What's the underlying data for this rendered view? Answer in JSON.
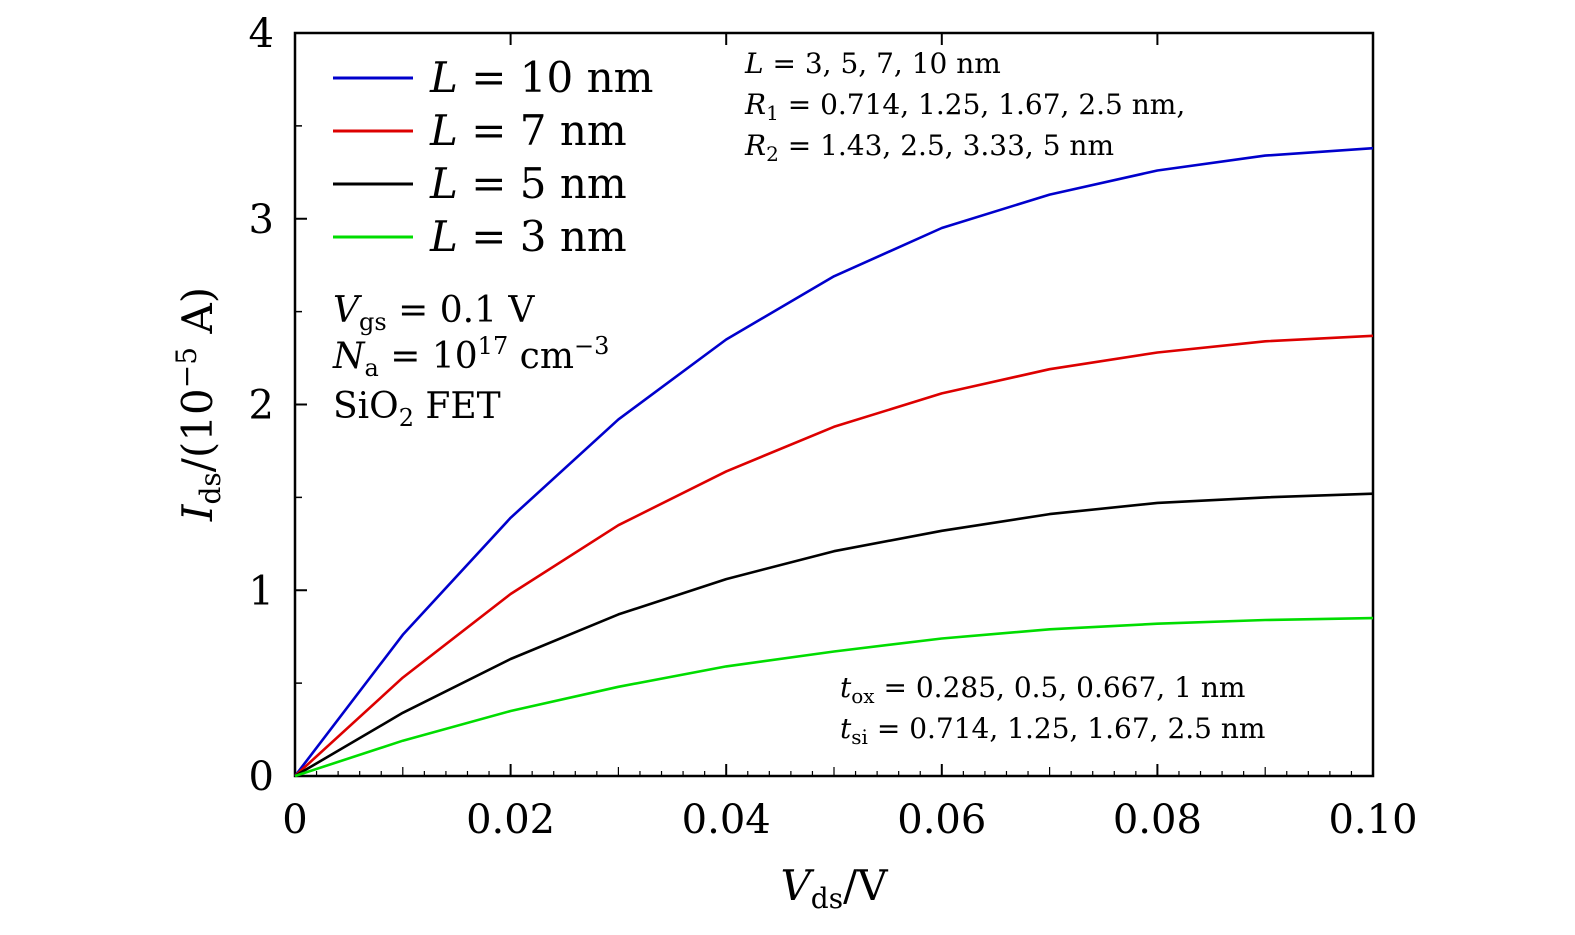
{
  "chart_data": {
    "type": "line",
    "xlabel": "V_ds/V",
    "ylabel": "I_ds/(10^-5 A)",
    "xlim": [
      0,
      0.1
    ],
    "ylim": [
      0,
      4
    ],
    "x": [
      0,
      0.01,
      0.02,
      0.03,
      0.04,
      0.05,
      0.06,
      0.07,
      0.08,
      0.09,
      0.1
    ],
    "x_ticks": [
      0,
      0.02,
      0.04,
      0.06,
      0.08,
      0.1
    ],
    "x_tick_labels": [
      "0",
      "0.02",
      "0.04",
      "0.06",
      "0.08",
      "0.10"
    ],
    "y_ticks": [
      0,
      1,
      2,
      3,
      4
    ],
    "y_tick_labels": [
      "0",
      "1",
      "2",
      "3",
      "4"
    ],
    "legend_position": "top-left",
    "series": [
      {
        "name": "L = 10 nm",
        "label_var": "L",
        "label_rest": " = 10 nm",
        "color": "#0000cc",
        "values": [
          0,
          0.76,
          1.39,
          1.92,
          2.35,
          2.69,
          2.95,
          3.13,
          3.26,
          3.34,
          3.38
        ]
      },
      {
        "name": "L = 7 nm",
        "label_var": "L",
        "label_rest": " = 7 nm",
        "color": "#dd0000",
        "values": [
          0,
          0.53,
          0.98,
          1.35,
          1.64,
          1.88,
          2.06,
          2.19,
          2.28,
          2.34,
          2.37
        ]
      },
      {
        "name": "L = 5 nm",
        "label_var": "L",
        "label_rest": " = 5 nm",
        "color": "#000000",
        "values": [
          0,
          0.34,
          0.63,
          0.87,
          1.06,
          1.21,
          1.32,
          1.41,
          1.47,
          1.5,
          1.52
        ]
      },
      {
        "name": "L = 3 nm",
        "label_var": "L",
        "label_rest": " = 3 nm",
        "color": "#00dd00",
        "values": [
          0,
          0.19,
          0.35,
          0.48,
          0.59,
          0.67,
          0.74,
          0.79,
          0.82,
          0.84,
          0.85
        ]
      }
    ],
    "annotations": {
      "params_top": {
        "line1": " = 3, 5, 7, 10 nm",
        "line2": " = 0.714, 1.25, 1.67, 2.5 nm,",
        "line3": " = 1.43, 2.5, 3.33, 5 nm"
      },
      "conditions": {
        "vgs": " = 0.1 V",
        "na_base": " = 10",
        "na_exp": "17",
        "na_unit": " cm",
        "na_unit_exp": "−3",
        "fet_pre": "SiO",
        "fet_sub": "2",
        "fet_post": " FET"
      },
      "params_bottom": {
        "tox": " = 0.285, 0.5, 0.667, 1 nm",
        "tsi": " = 0.714, 1.25, 1.67, 2.5 nm"
      }
    }
  }
}
